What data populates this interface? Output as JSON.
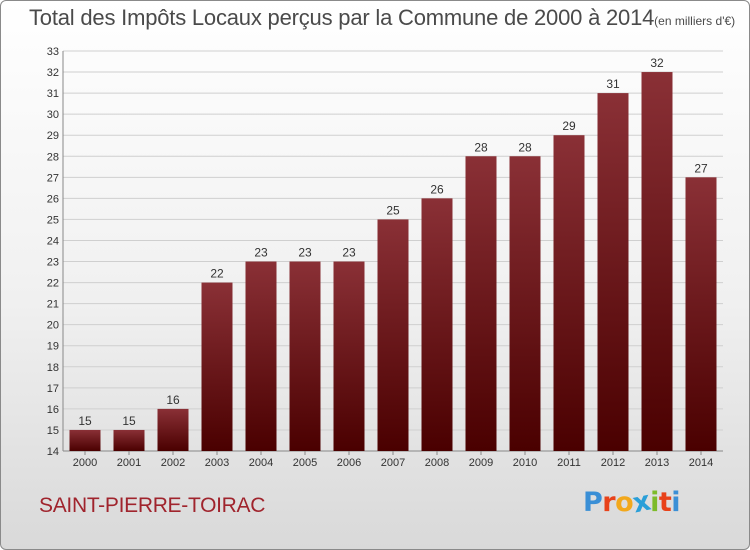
{
  "page": {
    "commune": "SAINT-PIERRE-TOIRAC",
    "logo": {
      "letters": [
        "P",
        "r",
        "o",
        "x",
        "i",
        "t",
        "i"
      ],
      "colors": [
        "#3a8fd6",
        "#e8421a",
        "#f2a81c",
        "#2a9fd8",
        "#7dbb2a",
        "#e8421a",
        "#3a8fd6"
      ]
    }
  },
  "chart_data": {
    "type": "bar",
    "title": "Total des Impôts Locaux perçus par la Commune de 2000 à 2014",
    "unit": "(en milliers d'€)",
    "xlabel": "",
    "ylabel": "",
    "categories": [
      "2000",
      "2001",
      "2002",
      "2003",
      "2004",
      "2005",
      "2006",
      "2007",
      "2008",
      "2009",
      "2010",
      "2011",
      "2012",
      "2013",
      "2014"
    ],
    "values": [
      15,
      15,
      16,
      22,
      23,
      23,
      23,
      25,
      26,
      28,
      28,
      29,
      31,
      32,
      27
    ],
    "ylim": [
      14,
      33
    ],
    "yticks": [
      14,
      15,
      16,
      17,
      18,
      19,
      20,
      21,
      22,
      23,
      24,
      25,
      26,
      27,
      28,
      29,
      30,
      31,
      32,
      33
    ],
    "grid": true,
    "colors": {
      "bar_top": "#8a3036",
      "bar_bottom": "#4a0000",
      "grid": "#cfcfcf"
    }
  }
}
